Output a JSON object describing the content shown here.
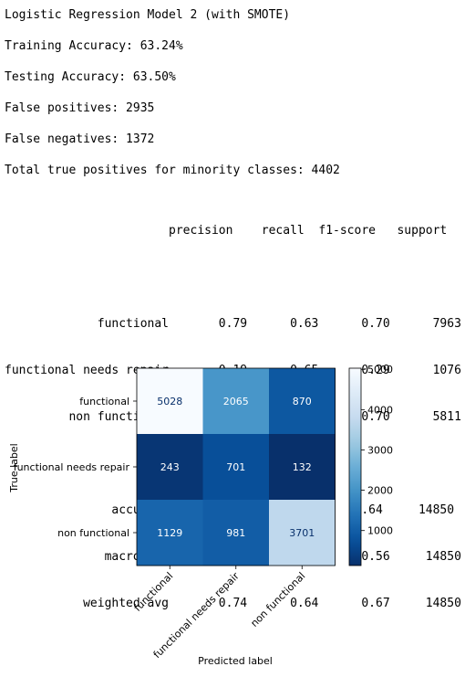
{
  "lines": {
    "title": "Logistic Regression Model 2 (with SMOTE)",
    "train_acc": "Training Accuracy: 63.24%",
    "test_acc": "Testing Accuracy: 63.50%",
    "false_pos": "False positives: 2935",
    "false_neg": "False negatives: 1372",
    "true_pos": "Total true positives for minority classes: 4402"
  },
  "report": {
    "header": "                       precision    recall  f1-score   support",
    "rows": [
      "",
      "             functional       0.79      0.63      0.70      7963",
      "functional needs repair       0.19      0.65      0.29      1076",
      "         non functional       0.79      0.64      0.70      5811",
      "",
      "               accuracy                          0.64     14850",
      "              macro avg       0.59      0.64      0.56     14850",
      "           weighted avg       0.74      0.64      0.67     14850"
    ]
  },
  "chart_data": {
    "type": "heatmap",
    "colormap": "Blues",
    "true_labels": [
      "functional",
      "functional needs repair",
      "non functional"
    ],
    "predicted_labels": [
      "functional",
      "functional needs repair",
      "non functional"
    ],
    "matrix": [
      [
        5028,
        2065,
        870
      ],
      [
        243,
        701,
        132
      ],
      [
        1129,
        981,
        3701
      ]
    ],
    "xlabel": "Predicted label",
    "ylabel": "True label",
    "colorbar_ticks": [
      1000,
      2000,
      3000,
      4000,
      5000
    ],
    "colorbar_range": [
      132,
      5028
    ],
    "colors": {
      "low": "#08306b",
      "high": "#f7fbff"
    }
  }
}
